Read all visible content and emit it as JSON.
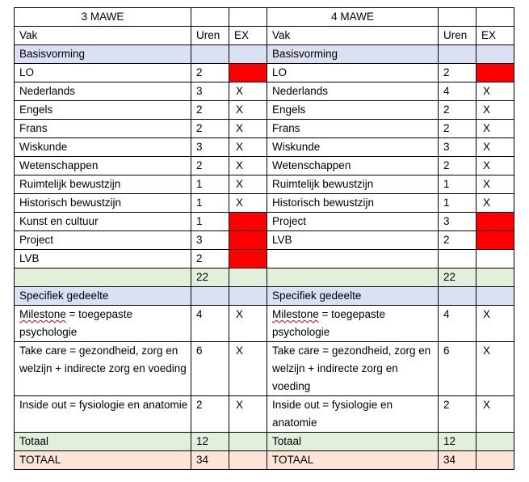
{
  "header": {
    "col_left": "3 MAWE",
    "col_right": "4 MAWE"
  },
  "columns": {
    "vak": "Vak",
    "uren": "Uren",
    "ex": "EX"
  },
  "basis": {
    "title": "Basisvorming",
    "left": [
      {
        "vak": "LO",
        "uren": "2",
        "ex": "",
        "ex_red": true
      },
      {
        "vak": "Nederlands",
        "uren": "3",
        "ex": "X"
      },
      {
        "vak": "Engels",
        "uren": "2",
        "ex": "X"
      },
      {
        "vak": "Frans",
        "uren": "2",
        "ex": "X"
      },
      {
        "vak": "Wiskunde",
        "uren": "3",
        "ex": "X"
      },
      {
        "vak": "Wetenschappen",
        "uren": "2",
        "ex": "X"
      },
      {
        "vak": "Ruimtelijk bewustzijn",
        "uren": "1",
        "ex": "X"
      },
      {
        "vak": "Historisch bewustzijn",
        "uren": "1",
        "ex": "X"
      },
      {
        "vak": "Kunst en cultuur",
        "uren": "1",
        "ex": "",
        "ex_red": true
      },
      {
        "vak": "Project",
        "uren": "3",
        "ex": "",
        "ex_red": true
      },
      {
        "vak": "LVB",
        "uren": "2",
        "ex": "",
        "ex_red": true
      }
    ],
    "right": [
      {
        "vak": "LO",
        "uren": "2",
        "ex": "",
        "ex_red": true
      },
      {
        "vak": "Nederlands",
        "uren": "4",
        "ex": "X"
      },
      {
        "vak": "Engels",
        "uren": "2",
        "ex": "X"
      },
      {
        "vak": "Frans",
        "uren": "2",
        "ex": "X"
      },
      {
        "vak": "Wiskunde",
        "uren": "3",
        "ex": "X"
      },
      {
        "vak": "Wetenschappen",
        "uren": "2",
        "ex": "X"
      },
      {
        "vak": "Ruimtelijk bewustzijn",
        "uren": "1",
        "ex": "X"
      },
      {
        "vak": "Historisch bewustzijn",
        "uren": "1",
        "ex": "X"
      },
      {
        "vak": "Project",
        "uren": "3",
        "ex": "",
        "ex_red": true
      },
      {
        "vak": "LVB",
        "uren": "2",
        "ex": "",
        "ex_red": true
      }
    ],
    "subtotal_left": "22",
    "subtotal_right": "22"
  },
  "specifiek": {
    "title": "Specifiek gedeelte",
    "rows": [
      {
        "vak_first": "Milestone",
        "vak_rest": " = toegepaste psychologie",
        "uren_left": "4",
        "ex_left": "X",
        "uren_right": "4",
        "ex_right": "X"
      },
      {
        "vak": "Take care = gezondheid, zorg en welzijn + indirecte zorg en voeding",
        "uren_left": "6",
        "ex_left": "X",
        "uren_right": "6",
        "ex_right": "X"
      },
      {
        "vak": "Inside out = fysiologie en anatomie",
        "uren_left": "2",
        "ex_left": "X",
        "uren_right": "2",
        "ex_right": "X"
      }
    ]
  },
  "totaal": {
    "label": "Totaal",
    "left": "12",
    "right": "12"
  },
  "grand_total": {
    "label": "TOTAAL",
    "left": "34",
    "right": "34"
  },
  "colors": {
    "blue": "#d9e1f2",
    "green": "#e2efda",
    "peach": "#fce4d6",
    "red": "#ff0000"
  }
}
